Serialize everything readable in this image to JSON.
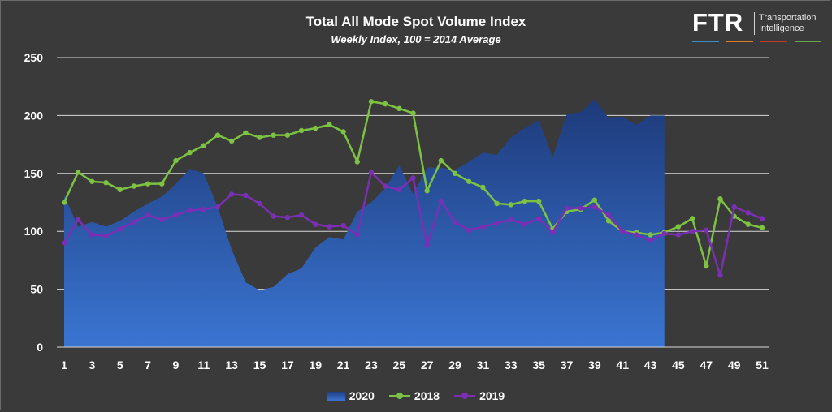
{
  "logo": {
    "mark": "FTR",
    "line1": "Transportation",
    "line2": "Intelligence",
    "bar_colors": [
      "#3b8ec8",
      "#e07b28",
      "#c03a2b",
      "#6aa84f"
    ]
  },
  "chart_data": {
    "type": "line",
    "title": "Total All Mode Spot Volume Index",
    "subtitle": "Weekly Index, 100 = 2014 Average",
    "xlabel": "",
    "ylabel": "",
    "xlim": [
      1,
      51
    ],
    "ylim": [
      0,
      250
    ],
    "yticks": [
      0,
      50,
      100,
      150,
      200,
      250
    ],
    "xticks": [
      1,
      3,
      5,
      7,
      9,
      11,
      13,
      15,
      17,
      19,
      21,
      23,
      25,
      27,
      29,
      31,
      33,
      35,
      37,
      39,
      41,
      43,
      45,
      47,
      49,
      51
    ],
    "grid": true,
    "legend_position": "bottom",
    "series": [
      {
        "name": "2020",
        "kind": "area",
        "color": "#2f62b8",
        "x": [
          1,
          2,
          3,
          4,
          5,
          6,
          7,
          8,
          9,
          10,
          11,
          12,
          13,
          14,
          15,
          16,
          17,
          18,
          19,
          20,
          21,
          22,
          23,
          24,
          25,
          26,
          27,
          28,
          29,
          30,
          31,
          32,
          33,
          34,
          35,
          36,
          37,
          38,
          39,
          40,
          41,
          42,
          43,
          44
        ],
        "values": [
          131,
          104,
          108,
          104,
          109,
          117,
          124,
          130,
          141,
          154,
          150,
          121,
          84,
          56,
          49,
          52,
          63,
          68,
          86,
          95,
          93,
          117,
          125,
          137,
          157,
          132,
          155,
          155,
          153,
          160,
          168,
          166,
          181,
          189,
          196,
          164,
          201,
          203,
          214,
          198,
          199,
          192,
          200,
          200
        ]
      },
      {
        "name": "2018",
        "kind": "line",
        "color": "#7dc242",
        "x": [
          1,
          2,
          3,
          4,
          5,
          6,
          7,
          8,
          9,
          10,
          11,
          12,
          13,
          14,
          15,
          16,
          17,
          18,
          19,
          20,
          21,
          22,
          23,
          24,
          25,
          26,
          27,
          28,
          29,
          30,
          31,
          32,
          33,
          34,
          35,
          36,
          37,
          38,
          39,
          40,
          41,
          42,
          43,
          44,
          45,
          46,
          47,
          48,
          49,
          50,
          51
        ],
        "values": [
          125,
          151,
          143,
          142,
          136,
          139,
          141,
          141,
          161,
          168,
          174,
          183,
          178,
          185,
          181,
          183,
          183,
          187,
          189,
          192,
          186,
          160,
          212,
          210,
          206,
          202,
          135,
          161,
          150,
          143,
          138,
          124,
          123,
          126,
          126,
          102,
          117,
          119,
          127,
          109,
          100,
          99,
          97,
          99,
          104,
          111,
          70,
          128,
          113,
          106,
          103
        ]
      },
      {
        "name": "2019",
        "kind": "line",
        "color": "#7b2fb5",
        "x": [
          1,
          2,
          3,
          4,
          5,
          6,
          7,
          8,
          9,
          10,
          11,
          12,
          13,
          14,
          15,
          16,
          17,
          18,
          19,
          20,
          21,
          22,
          23,
          24,
          25,
          26,
          27,
          28,
          29,
          30,
          31,
          32,
          33,
          34,
          35,
          36,
          37,
          38,
          39,
          40,
          41,
          42,
          43,
          44,
          45,
          46,
          47,
          48,
          49,
          50,
          51
        ],
        "values": [
          90,
          110,
          97,
          96,
          102,
          108,
          114,
          110,
          114,
          118,
          119,
          121,
          132,
          131,
          124,
          113,
          112,
          114,
          106,
          104,
          105,
          97,
          151,
          139,
          136,
          146,
          88,
          126,
          108,
          101,
          104,
          107,
          110,
          106,
          111,
          99,
          120,
          120,
          121,
          114,
          100,
          97,
          92,
          98,
          97,
          100,
          101,
          62,
          121,
          116,
          111
        ]
      }
    ]
  }
}
